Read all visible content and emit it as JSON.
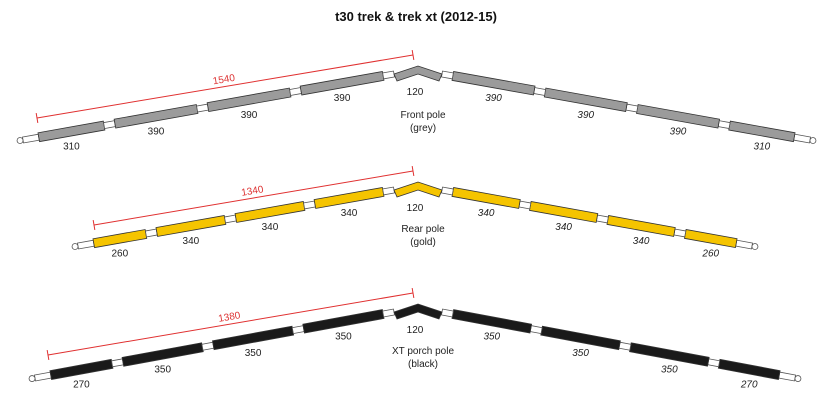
{
  "title": "t30 trek & trek xt (2012-15)",
  "poles": [
    {
      "key": "front",
      "name_line1": "Front pole",
      "name_line2": "(grey)",
      "color": "#9b9b9b",
      "dimension": "1540",
      "apex": "120",
      "left_segments": [
        "310",
        "390",
        "390",
        "390"
      ],
      "right_segments": [
        "310",
        "390",
        "390",
        "390"
      ]
    },
    {
      "key": "rear",
      "name_line1": "Rear pole",
      "name_line2": "(gold)",
      "color": "#f5c400",
      "dimension": "1340",
      "apex": "120",
      "left_segments": [
        "260",
        "340",
        "340",
        "340"
      ],
      "right_segments": [
        "260",
        "340",
        "340",
        "340"
      ]
    },
    {
      "key": "porch",
      "name_line1": "XT porch pole",
      "name_line2": "(black)",
      "color": "#1a1a1a",
      "dimension": "1380",
      "apex": "120",
      "left_segments": [
        "270",
        "350",
        "350",
        "350"
      ],
      "right_segments": [
        "270",
        "350",
        "350",
        "350"
      ]
    }
  ]
}
